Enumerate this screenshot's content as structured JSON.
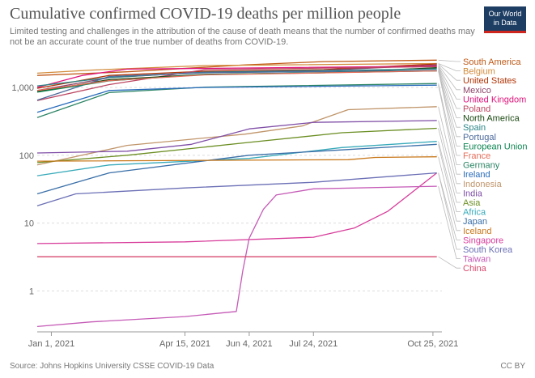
{
  "header": {
    "title": "Cumulative confirmed COVID-19 deaths per million people",
    "subtitle": "Limited testing and challenges in the attribution of the cause of death means that the number of confirmed deaths may not be an accurate count of the true number of deaths from COVID-19.",
    "logo_line1": "Our World",
    "logo_line2": "in Data",
    "logo_bg": "#1d3d63",
    "logo_accent": "#ce261e"
  },
  "footer": {
    "source": "Source: Johns Hopkins University CSSE COVID-19 Data",
    "license": "CC BY"
  },
  "chart_data": {
    "type": "line",
    "title": "Cumulative confirmed COVID-19 deaths per million people",
    "yscale": "log",
    "ylim": [
      0.25,
      3000
    ],
    "xlim": [
      "2020-12-21",
      "2021-11-01"
    ],
    "grid": "horizontal dashed",
    "legend": "right (line-end labels)",
    "y_ticks": [
      {
        "value": 1,
        "label": "1"
      },
      {
        "value": 10,
        "label": "10"
      },
      {
        "value": 100,
        "label": "100"
      },
      {
        "value": 1000,
        "label": "1,000"
      }
    ],
    "x_ticks": [
      {
        "date": "2021-01-01",
        "label": "Jan 1, 2021"
      },
      {
        "date": "2021-04-15",
        "label": "Apr 15, 2021"
      },
      {
        "date": "2021-06-04",
        "label": "Jun 4, 2021"
      },
      {
        "date": "2021-07-24",
        "label": "Jul 24, 2021"
      },
      {
        "date": "2021-10-25",
        "label": "Oct 25, 2021"
      }
    ],
    "series": [
      {
        "name": "South America",
        "color": "#c05917",
        "points": [
          [
            "2020-12-21",
            1500
          ],
          [
            "2021-03-01",
            1700
          ],
          [
            "2021-06-01",
            2150
          ],
          [
            "2021-08-01",
            2400
          ],
          [
            "2021-10-28",
            2520
          ]
        ]
      },
      {
        "name": "Belgium",
        "color": "#d28a3a",
        "points": [
          [
            "2020-12-21",
            1620
          ],
          [
            "2021-02-01",
            1800
          ],
          [
            "2021-05-01",
            2100
          ],
          [
            "2021-10-28",
            2250
          ]
        ]
      },
      {
        "name": "United States",
        "color": "#b13507",
        "points": [
          [
            "2020-12-21",
            970
          ],
          [
            "2021-02-15",
            1500
          ],
          [
            "2021-05-01",
            1730
          ],
          [
            "2021-08-01",
            1830
          ],
          [
            "2021-10-28",
            2220
          ]
        ]
      },
      {
        "name": "Mexico",
        "color": "#8c4569",
        "points": [
          [
            "2020-12-21",
            900
          ],
          [
            "2021-02-15",
            1390
          ],
          [
            "2021-05-01",
            1680
          ],
          [
            "2021-08-01",
            1790
          ],
          [
            "2021-10-28",
            2140
          ]
        ]
      },
      {
        "name": "United Kingdom",
        "color": "#e0137b",
        "points": [
          [
            "2020-12-21",
            1000
          ],
          [
            "2021-01-25",
            1500
          ],
          [
            "2021-03-01",
            1860
          ],
          [
            "2021-10-28",
            2060
          ]
        ]
      },
      {
        "name": "Poland",
        "color": "#bc4662",
        "points": [
          [
            "2020-12-21",
            640
          ],
          [
            "2021-02-15",
            1100
          ],
          [
            "2021-05-01",
            1830
          ],
          [
            "2021-10-28",
            2020
          ]
        ]
      },
      {
        "name": "North America",
        "color": "#18470f",
        "points": [
          [
            "2020-12-21",
            870
          ],
          [
            "2021-02-15",
            1300
          ],
          [
            "2021-05-01",
            1560
          ],
          [
            "2021-08-01",
            1640
          ],
          [
            "2021-10-28",
            1950
          ]
        ]
      },
      {
        "name": "Spain",
        "color": "#2d8587",
        "points": [
          [
            "2020-12-21",
            1050
          ],
          [
            "2021-02-15",
            1400
          ],
          [
            "2021-05-01",
            1680
          ],
          [
            "2021-10-28",
            1870
          ]
        ]
      },
      {
        "name": "Portugal",
        "color": "#4c6a9c",
        "points": [
          [
            "2020-12-21",
            650
          ],
          [
            "2021-02-15",
            1450
          ],
          [
            "2021-05-01",
            1650
          ],
          [
            "2021-10-28",
            1780
          ]
        ]
      },
      {
        "name": "European Union",
        "color": "#0f8554",
        "points": [
          [
            "2020-12-21",
            850
          ],
          [
            "2021-02-15",
            1250
          ],
          [
            "2021-05-01",
            1550
          ],
          [
            "2021-10-28",
            1750
          ]
        ]
      },
      {
        "name": "France",
        "color": "#e56e5a",
        "points": [
          [
            "2020-12-21",
            900
          ],
          [
            "2021-02-15",
            1260
          ],
          [
            "2021-05-01",
            1530
          ],
          [
            "2021-10-28",
            1750
          ]
        ]
      },
      {
        "name": "Germany",
        "color": "#2c8465",
        "points": [
          [
            "2020-12-21",
            360
          ],
          [
            "2021-02-15",
            840
          ],
          [
            "2021-05-01",
            1010
          ],
          [
            "2021-10-28",
            1140
          ]
        ]
      },
      {
        "name": "Ireland",
        "color": "#286bbb",
        "points": [
          [
            "2020-12-21",
            430
          ],
          [
            "2021-02-15",
            900
          ],
          [
            "2021-05-01",
            1000
          ],
          [
            "2021-10-28",
            1080
          ]
        ]
      },
      {
        "name": "Indonesia",
        "color": "#c0956a",
        "points": [
          [
            "2020-12-21",
            72
          ],
          [
            "2021-03-01",
            140
          ],
          [
            "2021-06-01",
            205
          ],
          [
            "2021-07-15",
            270
          ],
          [
            "2021-08-20",
            470
          ],
          [
            "2021-10-28",
            520
          ]
        ]
      },
      {
        "name": "India",
        "color": "#7f4ea6",
        "points": [
          [
            "2020-12-21",
            108
          ],
          [
            "2021-03-01",
            115
          ],
          [
            "2021-04-20",
            145
          ],
          [
            "2021-06-04",
            245
          ],
          [
            "2021-07-24",
            305
          ],
          [
            "2021-10-28",
            325
          ]
        ]
      },
      {
        "name": "Asia",
        "color": "#6b8e23",
        "points": [
          [
            "2020-12-21",
            78
          ],
          [
            "2021-03-01",
            100
          ],
          [
            "2021-06-04",
            155
          ],
          [
            "2021-08-15",
            215
          ],
          [
            "2021-10-28",
            250
          ]
        ]
      },
      {
        "name": "Africa",
        "color": "#38aaba",
        "points": [
          [
            "2020-12-21",
            50
          ],
          [
            "2021-02-15",
            72
          ],
          [
            "2021-06-04",
            90
          ],
          [
            "2021-08-15",
            130
          ],
          [
            "2021-10-28",
            160
          ]
        ]
      },
      {
        "name": "Japan",
        "color": "#3a6fa8",
        "points": [
          [
            "2020-12-21",
            27
          ],
          [
            "2021-02-15",
            55
          ],
          [
            "2021-06-04",
            100
          ],
          [
            "2021-08-15",
            120
          ],
          [
            "2021-10-28",
            145
          ]
        ]
      },
      {
        "name": "Iceland",
        "color": "#c8781b",
        "points": [
          [
            "2020-12-21",
            82
          ],
          [
            "2021-08-20",
            86
          ],
          [
            "2021-09-10",
            93
          ],
          [
            "2021-10-28",
            95
          ]
        ]
      },
      {
        "name": "Singapore",
        "color": "#d73c9a",
        "points": [
          [
            "2020-12-21",
            5
          ],
          [
            "2021-04-15",
            5.3
          ],
          [
            "2021-07-24",
            6.2
          ],
          [
            "2021-08-25",
            8.5
          ],
          [
            "2021-09-20",
            15
          ],
          [
            "2021-10-28",
            55
          ]
        ]
      },
      {
        "name": "South Korea",
        "color": "#6b6fb5",
        "points": [
          [
            "2020-12-21",
            18
          ],
          [
            "2021-01-20",
            27
          ],
          [
            "2021-04-15",
            33
          ],
          [
            "2021-07-24",
            40
          ],
          [
            "2021-10-28",
            55
          ]
        ]
      },
      {
        "name": "Taiwan",
        "color": "#c55ab6",
        "points": [
          [
            "2020-12-21",
            0.3
          ],
          [
            "2021-02-01",
            0.35
          ],
          [
            "2021-04-15",
            0.42
          ],
          [
            "2021-05-25",
            0.5
          ],
          [
            "2021-05-30",
            2
          ],
          [
            "2021-06-04",
            6
          ],
          [
            "2021-06-15",
            16
          ],
          [
            "2021-06-25",
            26
          ],
          [
            "2021-07-24",
            32
          ],
          [
            "2021-10-28",
            35
          ]
        ]
      },
      {
        "name": "China",
        "color": "#d6486e",
        "points": [
          [
            "2020-12-21",
            3.2
          ],
          [
            "2021-10-28",
            3.2
          ]
        ]
      }
    ]
  }
}
